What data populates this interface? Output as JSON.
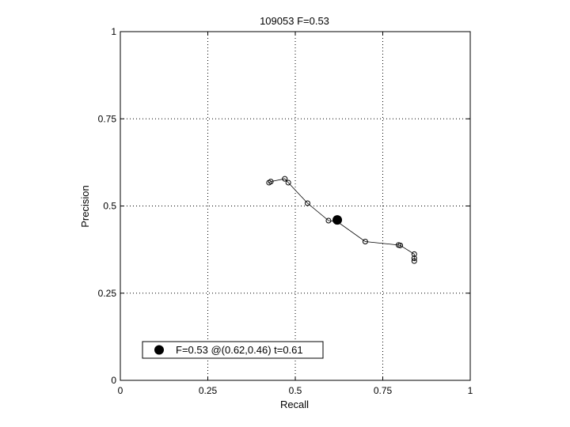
{
  "chart_data": {
    "type": "scatter",
    "title": "109053 F=0.53",
    "xlabel": "Recall",
    "ylabel": "Precision",
    "xlim": [
      0,
      1
    ],
    "ylim": [
      0,
      1
    ],
    "xticks": [
      0,
      0.25,
      0.5,
      0.75,
      1
    ],
    "xtick_labels": [
      "0",
      "0.25",
      "0.5",
      "0.75",
      "1"
    ],
    "yticks": [
      0,
      0.25,
      0.5,
      0.75,
      1
    ],
    "ytick_labels": [
      "0",
      "0.25",
      "0.5",
      "0.75",
      "1"
    ],
    "grid": true,
    "legend_position": "bottom-left",
    "series": [
      {
        "x": [
          0.425,
          0.43,
          0.47,
          0.48,
          0.535,
          0.595,
          0.62,
          0.7,
          0.795,
          0.8,
          0.84,
          0.84,
          0.84
        ],
        "y": [
          0.567,
          0.57,
          0.578,
          0.567,
          0.508,
          0.458,
          0.455,
          0.398,
          0.388,
          0.387,
          0.362,
          0.35,
          0.342
        ]
      }
    ],
    "highlight": {
      "x": 0.62,
      "y": 0.46
    },
    "legend_text": "F=0.53 @(0.62,0.46) t=0.61"
  }
}
